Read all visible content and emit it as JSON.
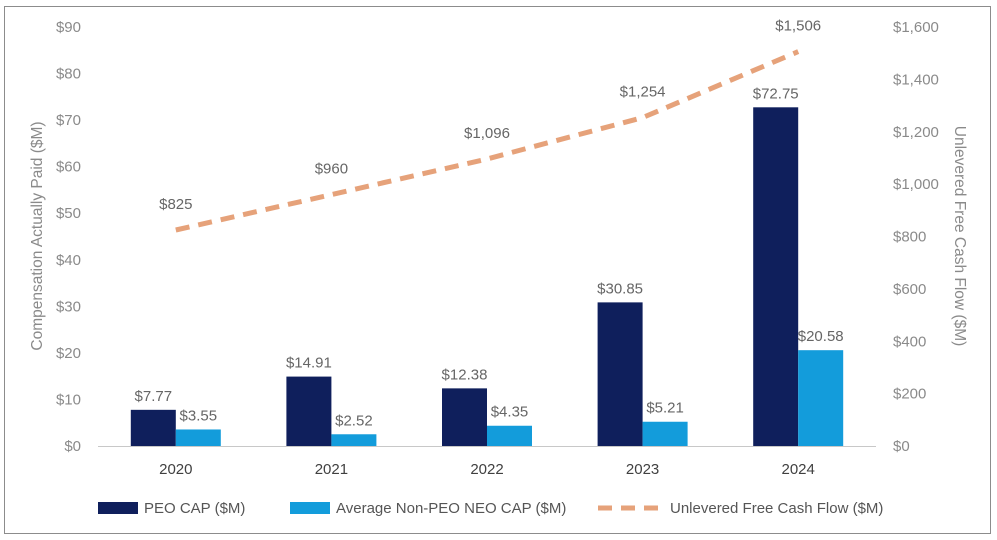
{
  "chart_data": {
    "type": "bar",
    "categories": [
      "2020",
      "2021",
      "2022",
      "2023",
      "2024"
    ],
    "series": [
      {
        "name": "PEO CAP ($M)",
        "axis": "left",
        "kind": "bar",
        "color": "#0f1f5c",
        "values": [
          7.77,
          14.91,
          12.38,
          30.85,
          72.75
        ],
        "labels": [
          "$7.77",
          "$14.91",
          "$12.38",
          "$30.85",
          "$72.75"
        ]
      },
      {
        "name": "Average Non-PEO NEO CAP ($M)",
        "axis": "left",
        "kind": "bar",
        "color": "#139cdb",
        "values": [
          3.55,
          2.52,
          4.35,
          5.21,
          20.58
        ],
        "labels": [
          "$3.55",
          "$2.52",
          "$4.35",
          "$5.21",
          "$20.58"
        ]
      },
      {
        "name": "Unlevered Free Cash Flow ($M)",
        "axis": "right",
        "kind": "line",
        "style": "dashed",
        "color": "#e6a27a",
        "values": [
          825,
          960,
          1096,
          1254,
          1506
        ],
        "labels": [
          "$825",
          "$960",
          "$1,096",
          "$1,254",
          "$1,506"
        ]
      }
    ],
    "y_left": {
      "label": "Compensation Actually Paid ($M)",
      "range": [
        0,
        90
      ],
      "ticks": [
        0,
        10,
        20,
        30,
        40,
        50,
        60,
        70,
        80,
        90
      ],
      "tick_labels": [
        "$0",
        "$10",
        "$20",
        "$30",
        "$40",
        "$50",
        "$60",
        "$70",
        "$80",
        "$90"
      ]
    },
    "y_right": {
      "label": "Unlevered Free Cash Flow ($M)",
      "range": [
        0,
        1600
      ],
      "ticks": [
        0,
        200,
        400,
        600,
        800,
        1000,
        1200,
        1400,
        1600
      ],
      "tick_labels": [
        "$0",
        "$200",
        "$400",
        "$600",
        "$800",
        "$1,000",
        "$1,200",
        "$1,400",
        "$1,600"
      ]
    },
    "grid": false,
    "legend": "bottom"
  }
}
